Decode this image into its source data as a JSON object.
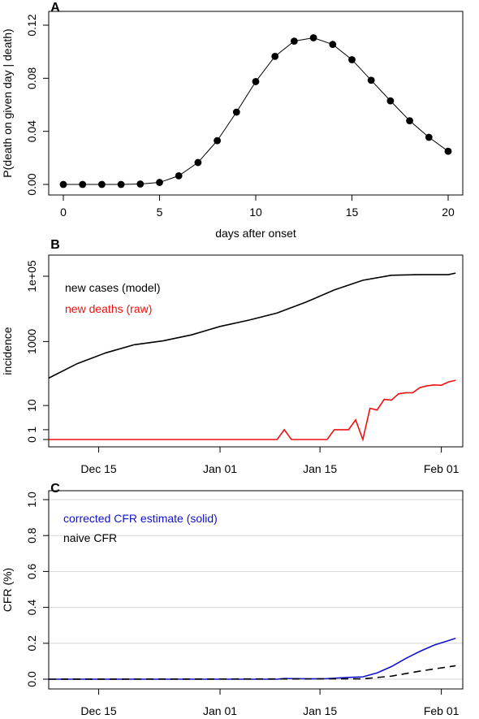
{
  "colors": {
    "black": "#000000",
    "red": "#ee1111",
    "blue": "#1111cc",
    "grid": "#d6d6d6"
  },
  "chart_data": [
    {
      "panel_label": "A",
      "type": "scatter",
      "connect_points": true,
      "xlabel": "days after onset",
      "ylabel": "P(death on given day | death)",
      "xlim": [
        0,
        20
      ],
      "ylim": [
        0,
        0.12
      ],
      "x_ticks": [
        "0",
        "5",
        "10",
        "15",
        "20"
      ],
      "y_ticks": [
        "0.00",
        "0.04",
        "0.08",
        "0.12"
      ],
      "x": [
        0,
        1,
        2,
        3,
        4,
        5,
        6,
        7,
        8,
        9,
        10,
        11,
        12,
        13,
        14,
        15,
        16,
        17,
        18,
        19,
        20
      ],
      "values": [
        0.0,
        0.0,
        0.0,
        0.0,
        0.0003,
        0.0015,
        0.0065,
        0.0165,
        0.033,
        0.0545,
        0.0775,
        0.0965,
        0.108,
        0.1105,
        0.1055,
        0.094,
        0.0785,
        0.063,
        0.048,
        0.0355,
        0.025
      ]
    },
    {
      "panel_label": "B",
      "type": "line",
      "ylabel": "incidence",
      "y_scale": "log(1+y)",
      "xlim": [
        "2019-12-08",
        "2020-02-04"
      ],
      "x_ticks": [
        "Dec 15",
        "Jan 01",
        "Jan 15",
        "Feb 01"
      ],
      "y_ticks": [
        "0",
        "1",
        "10",
        "1000",
        "1e+05"
      ],
      "legend": [
        "new cases (model)",
        "new deaths (raw)"
      ],
      "legend_position": "top-left",
      "series": [
        {
          "name": "new cases (model)",
          "color": "#000000",
          "x": [
            "2019-12-08",
            "2019-12-12",
            "2019-12-16",
            "2019-12-20",
            "2019-12-24",
            "2019-12-28",
            "2020-01-01",
            "2020-01-05",
            "2020-01-09",
            "2020-01-13",
            "2020-01-17",
            "2020-01-21",
            "2020-01-25",
            "2020-01-29",
            "2020-02-02",
            "2020-02-03"
          ],
          "values": [
            75,
            210,
            450,
            800,
            1050,
            1600,
            2900,
            4500,
            7500,
            16000,
            38000,
            75000,
            107000,
            112000,
            112000,
            125000
          ]
        },
        {
          "name": "new deaths (raw)",
          "color": "#ee1111",
          "x": [
            "2019-12-08",
            "2020-01-09",
            "2020-01-10",
            "2020-01-11",
            "2020-01-16",
            "2020-01-17",
            "2020-01-18",
            "2020-01-19",
            "2020-01-20",
            "2020-01-21",
            "2020-01-22",
            "2020-01-23",
            "2020-01-24",
            "2020-01-25",
            "2020-01-26",
            "2020-01-27",
            "2020-01-28",
            "2020-01-29",
            "2020-01-30",
            "2020-01-31",
            "2020-02-01",
            "2020-02-02",
            "2020-02-03"
          ],
          "values": [
            0,
            0,
            1,
            0,
            0,
            1,
            1,
            1,
            3,
            0,
            8,
            7,
            16,
            15,
            24,
            26,
            26,
            38,
            43,
            46,
            45,
            57,
            64
          ]
        }
      ]
    },
    {
      "panel_label": "C",
      "type": "line",
      "ylabel": "CFR (%)",
      "xlim": [
        "2019-12-08",
        "2020-02-04"
      ],
      "ylim": [
        0,
        1.0
      ],
      "grid": true,
      "x_ticks": [
        "Dec 15",
        "Jan 01",
        "Jan 15",
        "Feb 01"
      ],
      "y_ticks": [
        "0.0",
        "0.2",
        "0.4",
        "0.6",
        "0.8",
        "1.0"
      ],
      "legend": [
        "corrected CFR estimate (solid)",
        "naive CFR"
      ],
      "legend_position": "top-left",
      "series": [
        {
          "name": "corrected CFR estimate (solid)",
          "color": "#1111cc",
          "style": "solid",
          "x": [
            "2019-12-08",
            "2020-01-09",
            "2020-01-10",
            "2020-01-14",
            "2020-01-16",
            "2020-01-19",
            "2020-01-21",
            "2020-01-23",
            "2020-01-25",
            "2020-01-27",
            "2020-01-29",
            "2020-01-31",
            "2020-02-02",
            "2020-02-03"
          ],
          "values": [
            0,
            0,
            0.004,
            0.002,
            0.003,
            0.01,
            0.013,
            0.035,
            0.07,
            0.115,
            0.155,
            0.19,
            0.215,
            0.228
          ]
        },
        {
          "name": "naive CFR",
          "color": "#000000",
          "style": "dashed",
          "x": [
            "2019-12-08",
            "2020-01-21",
            "2020-01-25",
            "2020-01-29",
            "2020-02-03"
          ],
          "values": [
            0,
            0.002,
            0.017,
            0.045,
            0.075
          ]
        }
      ]
    }
  ]
}
